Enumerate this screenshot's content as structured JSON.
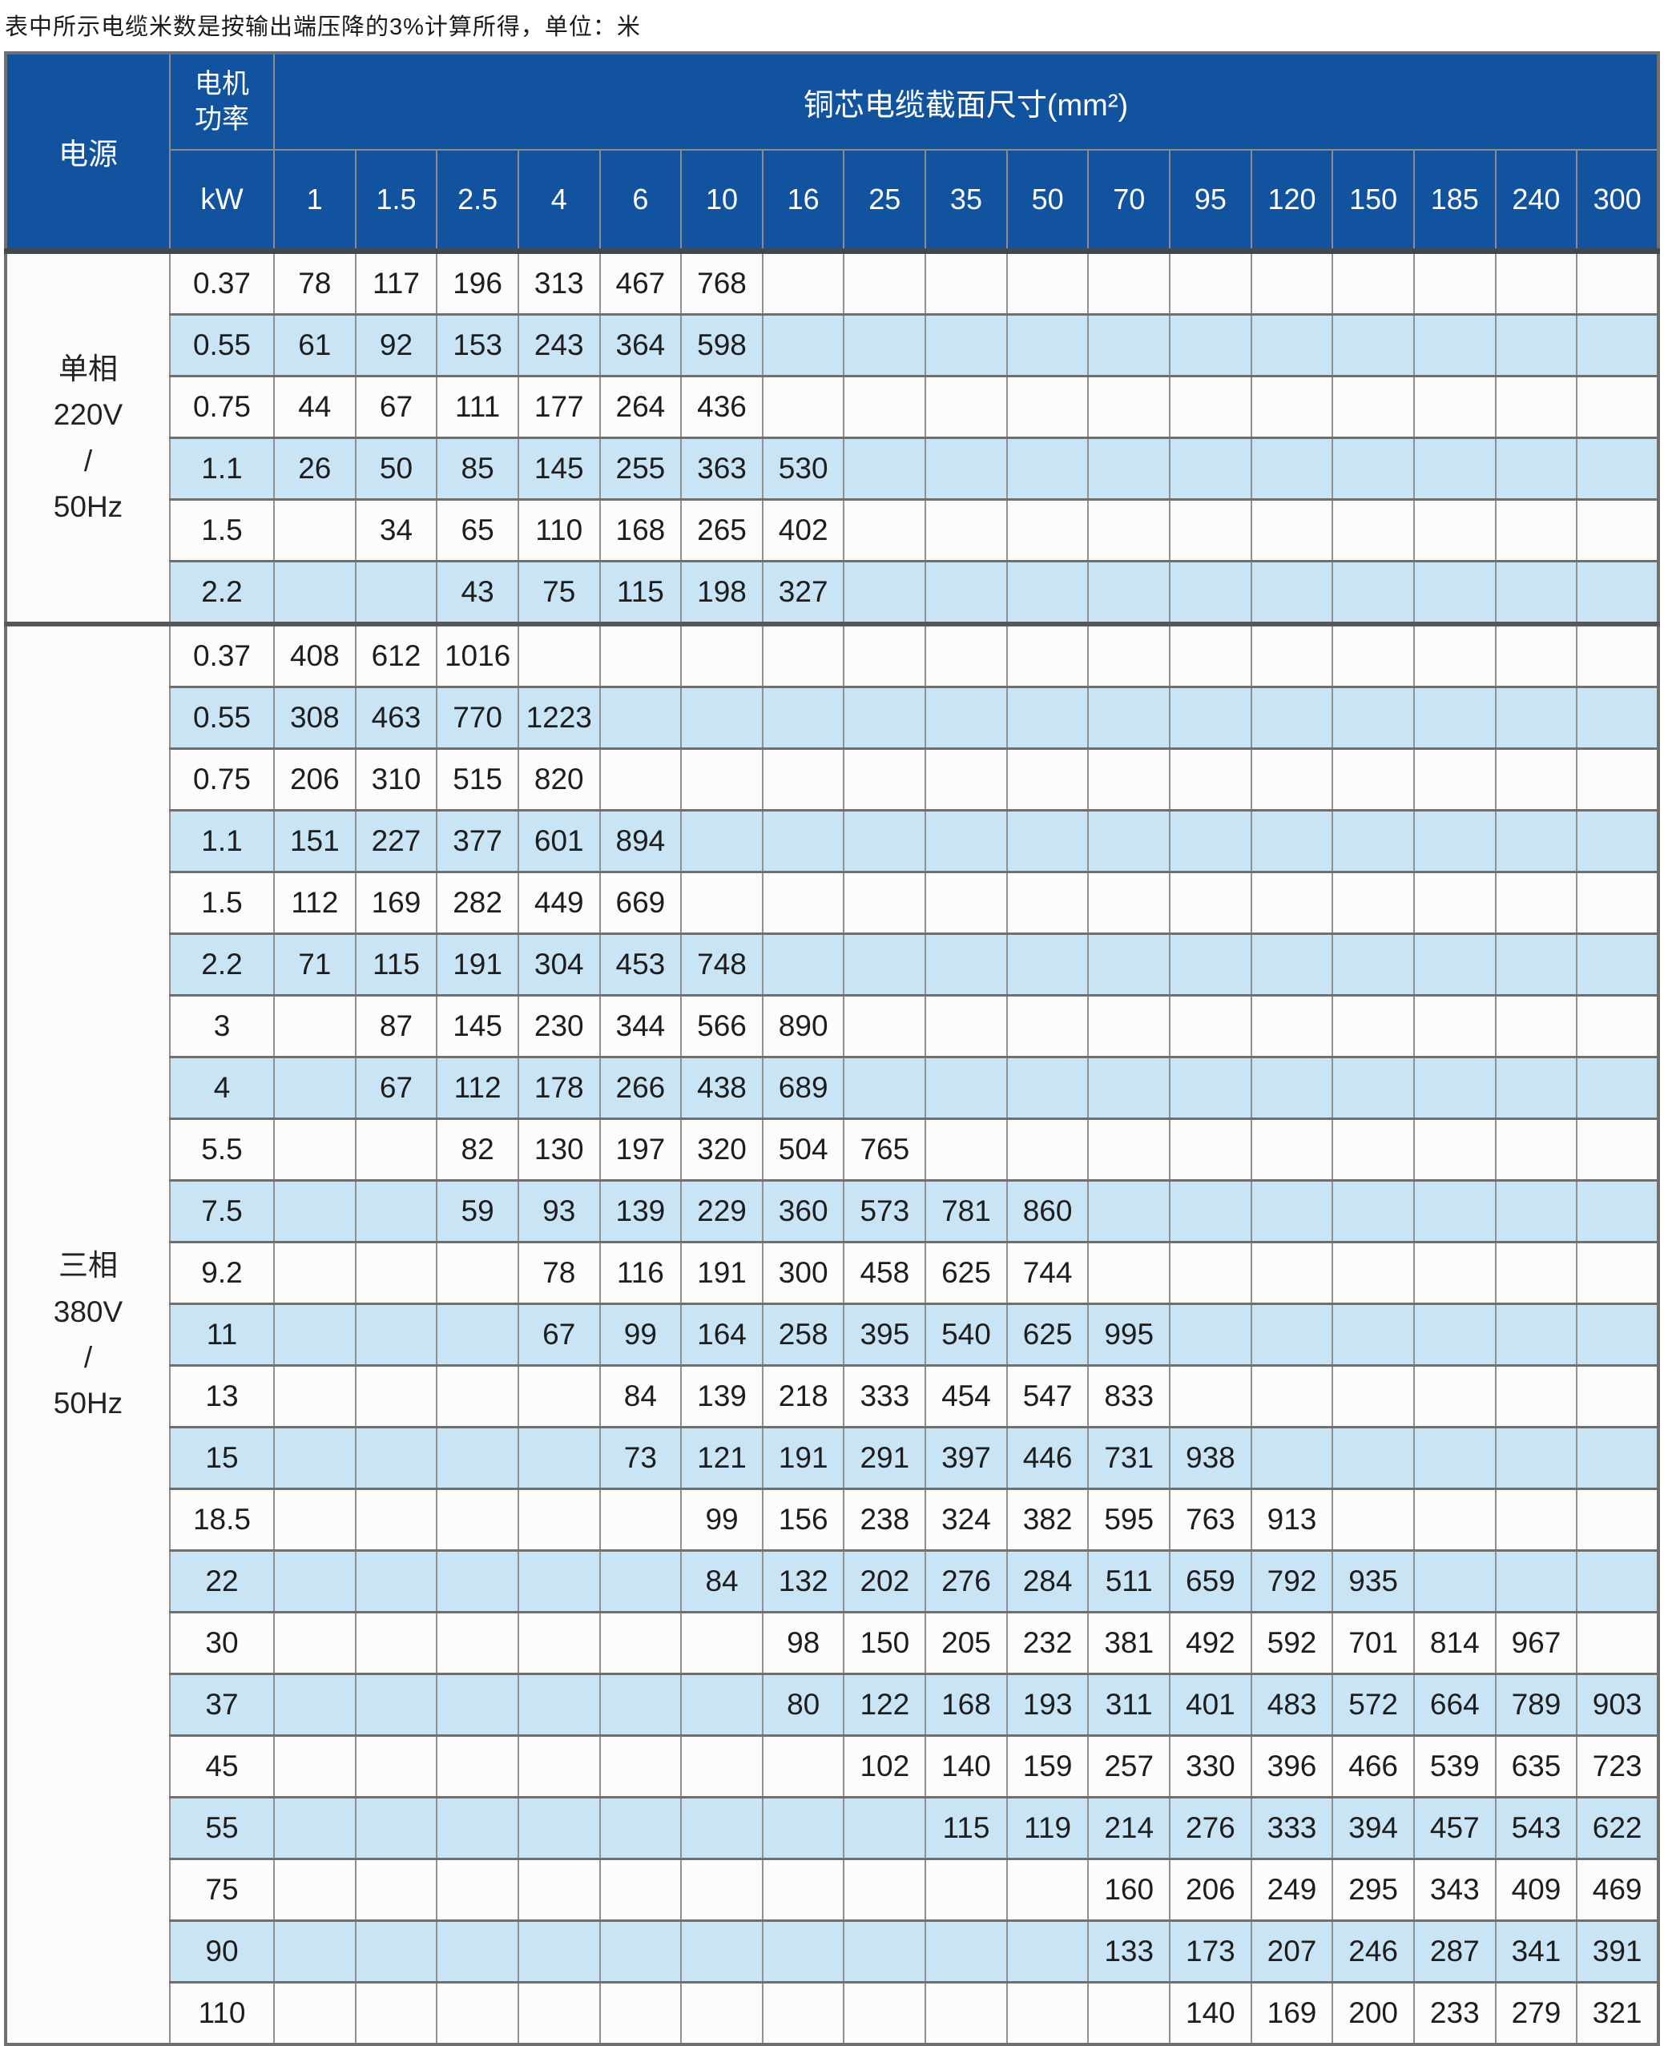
{
  "title": "表中所示电缆米数是按输出端压降的3%计算所得，单位：米",
  "table": {
    "headers": {
      "power_source": "电源",
      "motor_power_lines": [
        "电机",
        "功率"
      ],
      "unit": "kW",
      "cross_section": "铜芯电缆截面尺寸(mm²)"
    },
    "columns": [
      "1",
      "1.5",
      "2.5",
      "4",
      "6",
      "10",
      "16",
      "25",
      "35",
      "50",
      "70",
      "95",
      "120",
      "150",
      "185",
      "240",
      "300"
    ],
    "sections": [
      {
        "power_source_lines": [
          "单相",
          "220V",
          "/",
          "50Hz"
        ],
        "rows": [
          {
            "kw": "0.37",
            "values": [
              "78",
              "117",
              "196",
              "313",
              "467",
              "768",
              "",
              "",
              "",
              "",
              "",
              "",
              "",
              "",
              "",
              "",
              ""
            ]
          },
          {
            "kw": "0.55",
            "values": [
              "61",
              "92",
              "153",
              "243",
              "364",
              "598",
              "",
              "",
              "",
              "",
              "",
              "",
              "",
              "",
              "",
              "",
              ""
            ]
          },
          {
            "kw": "0.75",
            "values": [
              "44",
              "67",
              "111",
              "177",
              "264",
              "436",
              "",
              "",
              "",
              "",
              "",
              "",
              "",
              "",
              "",
              "",
              ""
            ]
          },
          {
            "kw": "1.1",
            "values": [
              "26",
              "50",
              "85",
              "145",
              "255",
              "363",
              "530",
              "",
              "",
              "",
              "",
              "",
              "",
              "",
              "",
              "",
              ""
            ]
          },
          {
            "kw": "1.5",
            "values": [
              "",
              "34",
              "65",
              "110",
              "168",
              "265",
              "402",
              "",
              "",
              "",
              "",
              "",
              "",
              "",
              "",
              "",
              ""
            ]
          },
          {
            "kw": "2.2",
            "values": [
              "",
              "",
              "43",
              "75",
              "115",
              "198",
              "327",
              "",
              "",
              "",
              "",
              "",
              "",
              "",
              "",
              "",
              ""
            ]
          }
        ]
      },
      {
        "power_source_lines": [
          "三相",
          "380V",
          "/",
          "50Hz"
        ],
        "rows": [
          {
            "kw": "0.37",
            "values": [
              "408",
              "612",
              "1016",
              "",
              "",
              "",
              "",
              "",
              "",
              "",
              "",
              "",
              "",
              "",
              "",
              "",
              ""
            ]
          },
          {
            "kw": "0.55",
            "values": [
              "308",
              "463",
              "770",
              "1223",
              "",
              "",
              "",
              "",
              "",
              "",
              "",
              "",
              "",
              "",
              "",
              "",
              ""
            ]
          },
          {
            "kw": "0.75",
            "values": [
              "206",
              "310",
              "515",
              "820",
              "",
              "",
              "",
              "",
              "",
              "",
              "",
              "",
              "",
              "",
              "",
              "",
              ""
            ]
          },
          {
            "kw": "1.1",
            "values": [
              "151",
              "227",
              "377",
              "601",
              "894",
              "",
              "",
              "",
              "",
              "",
              "",
              "",
              "",
              "",
              "",
              "",
              ""
            ]
          },
          {
            "kw": "1.5",
            "values": [
              "112",
              "169",
              "282",
              "449",
              "669",
              "",
              "",
              "",
              "",
              "",
              "",
              "",
              "",
              "",
              "",
              "",
              ""
            ]
          },
          {
            "kw": "2.2",
            "values": [
              "71",
              "115",
              "191",
              "304",
              "453",
              "748",
              "",
              "",
              "",
              "",
              "",
              "",
              "",
              "",
              "",
              "",
              ""
            ]
          },
          {
            "kw": "3",
            "values": [
              "",
              "87",
              "145",
              "230",
              "344",
              "566",
              "890",
              "",
              "",
              "",
              "",
              "",
              "",
              "",
              "",
              "",
              ""
            ]
          },
          {
            "kw": "4",
            "values": [
              "",
              "67",
              "112",
              "178",
              "266",
              "438",
              "689",
              "",
              "",
              "",
              "",
              "",
              "",
              "",
              "",
              "",
              ""
            ]
          },
          {
            "kw": "5.5",
            "values": [
              "",
              "",
              "82",
              "130",
              "197",
              "320",
              "504",
              "765",
              "",
              "",
              "",
              "",
              "",
              "",
              "",
              "",
              ""
            ]
          },
          {
            "kw": "7.5",
            "values": [
              "",
              "",
              "59",
              "93",
              "139",
              "229",
              "360",
              "573",
              "781",
              "860",
              "",
              "",
              "",
              "",
              "",
              "",
              ""
            ]
          },
          {
            "kw": "9.2",
            "values": [
              "",
              "",
              "",
              "78",
              "116",
              "191",
              "300",
              "458",
              "625",
              "744",
              "",
              "",
              "",
              "",
              "",
              "",
              ""
            ]
          },
          {
            "kw": "11",
            "values": [
              "",
              "",
              "",
              "67",
              "99",
              "164",
              "258",
              "395",
              "540",
              "625",
              "995",
              "",
              "",
              "",
              "",
              "",
              ""
            ]
          },
          {
            "kw": "13",
            "values": [
              "",
              "",
              "",
              "",
              "84",
              "139",
              "218",
              "333",
              "454",
              "547",
              "833",
              "",
              "",
              "",
              "",
              "",
              ""
            ]
          },
          {
            "kw": "15",
            "values": [
              "",
              "",
              "",
              "",
              "73",
              "121",
              "191",
              "291",
              "397",
              "446",
              "731",
              "938",
              "",
              "",
              "",
              "",
              ""
            ]
          },
          {
            "kw": "18.5",
            "values": [
              "",
              "",
              "",
              "",
              "",
              "99",
              "156",
              "238",
              "324",
              "382",
              "595",
              "763",
              "913",
              "",
              "",
              "",
              ""
            ]
          },
          {
            "kw": "22",
            "values": [
              "",
              "",
              "",
              "",
              "",
              "84",
              "132",
              "202",
              "276",
              "284",
              "511",
              "659",
              "792",
              "935",
              "",
              "",
              ""
            ]
          },
          {
            "kw": "30",
            "values": [
              "",
              "",
              "",
              "",
              "",
              "",
              "98",
              "150",
              "205",
              "232",
              "381",
              "492",
              "592",
              "701",
              "814",
              "967",
              ""
            ]
          },
          {
            "kw": "37",
            "values": [
              "",
              "",
              "",
              "",
              "",
              "",
              "80",
              "122",
              "168",
              "193",
              "311",
              "401",
              "483",
              "572",
              "664",
              "789",
              "903"
            ]
          },
          {
            "kw": "45",
            "values": [
              "",
              "",
              "",
              "",
              "",
              "",
              "",
              "102",
              "140",
              "159",
              "257",
              "330",
              "396",
              "466",
              "539",
              "635",
              "723"
            ]
          },
          {
            "kw": "55",
            "values": [
              "",
              "",
              "",
              "",
              "",
              "",
              "",
              "",
              "115",
              "119",
              "214",
              "276",
              "333",
              "394",
              "457",
              "543",
              "622"
            ]
          },
          {
            "kw": "75",
            "values": [
              "",
              "",
              "",
              "",
              "",
              "",
              "",
              "",
              "",
              "",
              "160",
              "206",
              "249",
              "295",
              "343",
              "409",
              "469"
            ]
          },
          {
            "kw": "90",
            "values": [
              "",
              "",
              "",
              "",
              "",
              "",
              "",
              "",
              "",
              "",
              "133",
              "173",
              "207",
              "246",
              "287",
              "341",
              "391"
            ]
          },
          {
            "kw": "110",
            "values": [
              "",
              "",
              "",
              "",
              "",
              "",
              "",
              "",
              "",
              "",
              "",
              "140",
              "169",
              "200",
              "233",
              "279",
              "321"
            ]
          }
        ]
      }
    ],
    "colors": {
      "header_bg": "#11539f",
      "header_text": "#ffffff",
      "stripe_bg": "#c9e4f4",
      "row_bg": "#fcfdfa",
      "grid_line": "#909090",
      "row_line": "#6f6f6f",
      "header_divider": "#42464d",
      "body_text": "#1d1d1d"
    }
  }
}
